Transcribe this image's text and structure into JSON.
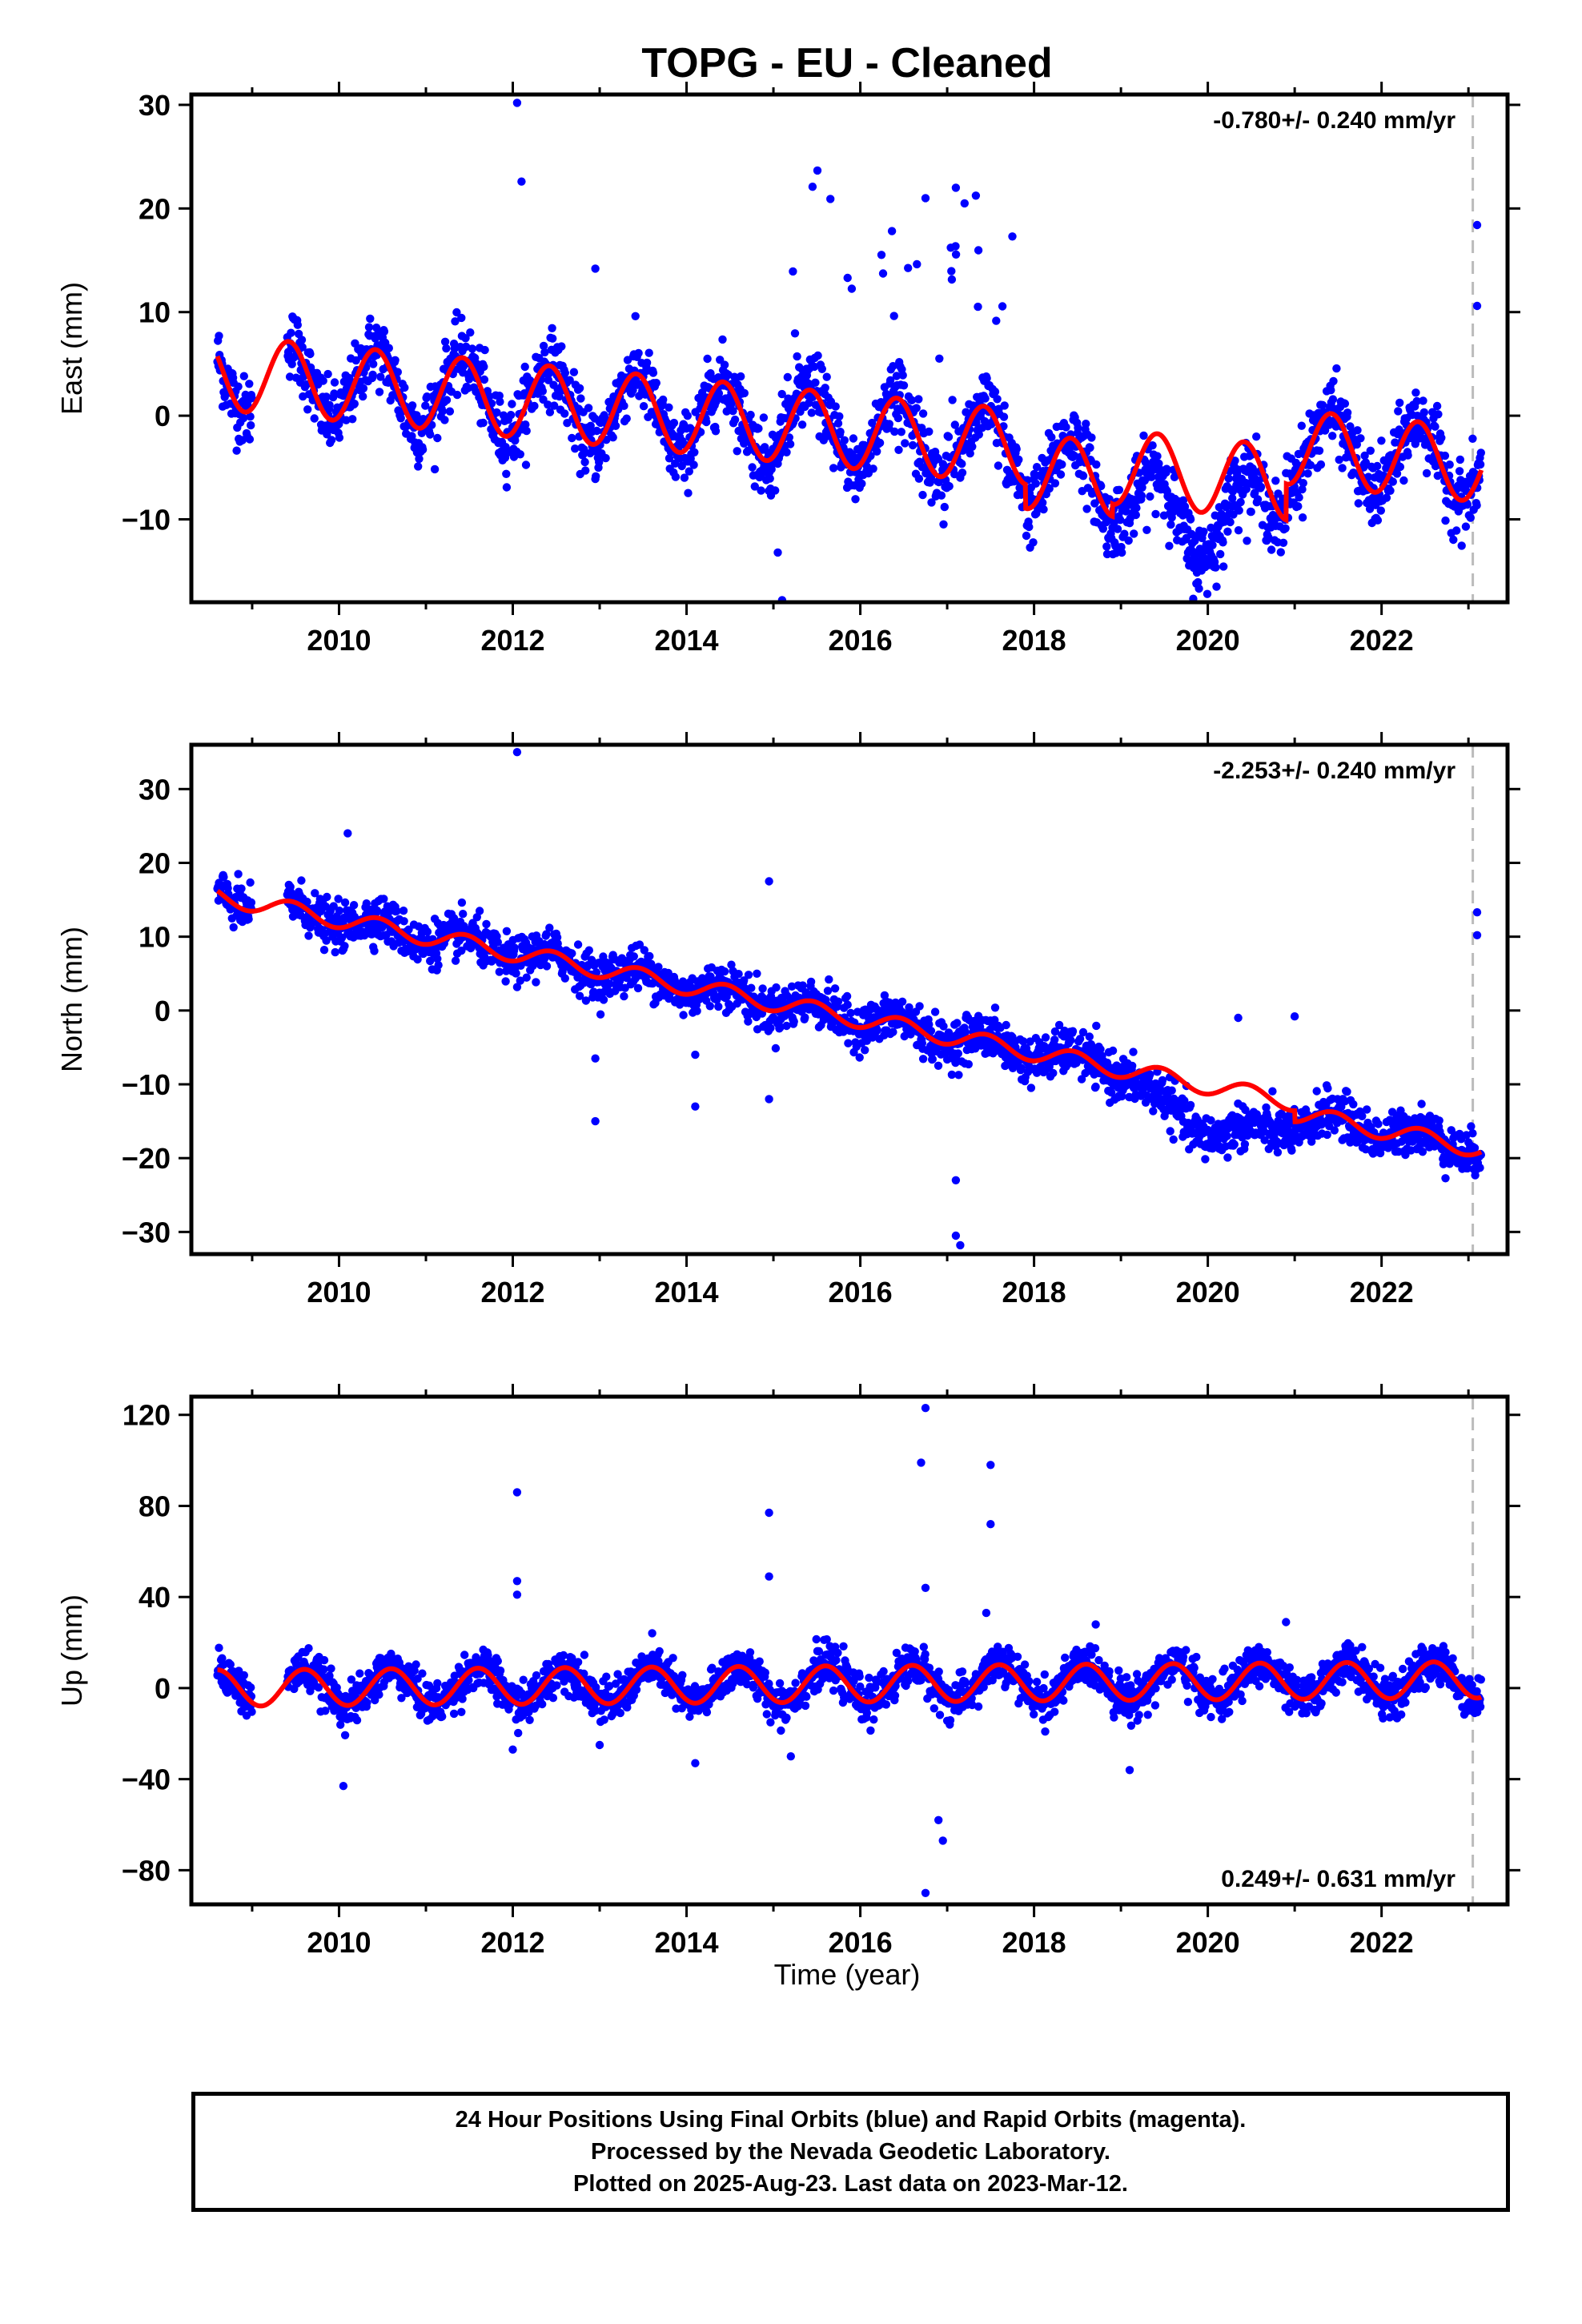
{
  "title": "TOPG  - EU - Cleaned",
  "xlabel": "Time (year)",
  "caption": [
    "24 Hour Positions Using Final Orbits (blue) and Rapid Orbits (magenta).",
    "Processed by the Nevada Geodetic Laboratory.",
    "Plotted on 2025-Aug-23. Last data on 2023-Mar-12."
  ],
  "colors": {
    "data": "#0000ff",
    "model": "#ff0000",
    "marker_line": "#bbbbbb",
    "frame": "#000000"
  },
  "chart_data": [
    {
      "type": "scatter",
      "panel": "east",
      "ylabel": "East (mm)",
      "rate_text": "-0.780+/- 0.240 mm/yr",
      "rate_position": "top-right",
      "xlim": [
        2008.3,
        2023.45
      ],
      "ylim": [
        -18,
        31
      ],
      "xticks": [
        2010,
        2012,
        2014,
        2016,
        2018,
        2020,
        2022
      ],
      "yticks": [
        -10,
        0,
        10,
        20,
        30
      ],
      "end_marker_year": 2023.05,
      "model": {
        "start": 2008.6,
        "end": 2023.15,
        "rate_mm_per_yr": -0.78,
        "offset_at_2008_6": 4.2,
        "annual_amplitude": 3.6,
        "annual_peak_year_fraction": 0.42,
        "step_changes": [
          [
            2017.9,
            -2.3
          ],
          [
            2018.9,
            1.2
          ],
          [
            2020.9,
            3.5
          ]
        ]
      },
      "outliers": [
        [
          2012.05,
          30.2
        ],
        [
          2012.1,
          22.6
        ],
        [
          2012.95,
          14.2
        ],
        [
          2015.05,
          -13.2
        ],
        [
          2015.1,
          -17.8
        ],
        [
          2015.45,
          22.1
        ],
        [
          2016.75,
          21.0
        ],
        [
          2017.1,
          22.0
        ],
        [
          2017.2,
          20.5
        ],
        [
          2017.75,
          17.3
        ],
        [
          2023.1,
          18.4
        ],
        [
          2023.1,
          10.6
        ],
        [
          2020.1,
          -16.5
        ]
      ],
      "series": [
        {
          "name": "Final Orbits",
          "color": "#0000ff"
        }
      ]
    },
    {
      "type": "scatter",
      "panel": "north",
      "ylabel": "North (mm)",
      "rate_text": "-2.253+/- 0.240 mm/yr",
      "rate_position": "top-right",
      "xlim": [
        2008.3,
        2023.45
      ],
      "ylim": [
        -33,
        36
      ],
      "xticks": [
        2010,
        2012,
        2014,
        2016,
        2018,
        2020,
        2022
      ],
      "yticks": [
        -30,
        -20,
        -10,
        0,
        10,
        20,
        30
      ],
      "end_marker_year": 2023.05,
      "model": {
        "start": 2008.6,
        "end": 2023.15,
        "rate_mm_per_yr": -2.253,
        "offset_at_2008_6": 15.5,
        "annual_amplitude": 1.2,
        "annual_peak_year_fraction": 0.45,
        "step_changes": [
          [
            2021.0,
            -1.5
          ]
        ]
      },
      "outliers": [
        [
          2012.05,
          35.0
        ],
        [
          2010.1,
          24.0
        ],
        [
          2012.95,
          -6.5
        ],
        [
          2012.95,
          -15.0
        ],
        [
          2014.1,
          -13.0
        ],
        [
          2014.1,
          -6.0
        ],
        [
          2014.95,
          17.5
        ],
        [
          2014.95,
          -12.0
        ],
        [
          2017.1,
          -30.5
        ],
        [
          2017.1,
          -23.0
        ],
        [
          2017.15,
          -31.8
        ],
        [
          2020.35,
          -1.0
        ],
        [
          2021.0,
          -0.8
        ],
        [
          2023.1,
          13.3
        ],
        [
          2023.1,
          10.2
        ]
      ],
      "series": [
        {
          "name": "Final Orbits",
          "color": "#0000ff"
        }
      ]
    },
    {
      "type": "scatter",
      "panel": "up",
      "ylabel": "Up (mm)",
      "rate_text": "0.249+/- 0.631 mm/yr",
      "rate_position": "bottom-right",
      "xlim": [
        2008.3,
        2023.45
      ],
      "ylim": [
        -95,
        128
      ],
      "xticks": [
        2010,
        2012,
        2014,
        2016,
        2018,
        2020,
        2022
      ],
      "yticks": [
        -80,
        -40,
        0,
        40,
        80,
        120
      ],
      "end_marker_year": 2023.05,
      "model": {
        "start": 2008.6,
        "end": 2023.15,
        "rate_mm_per_yr": 0.249,
        "offset_at_2008_6": 0.0,
        "annual_amplitude": 8.0,
        "annual_peak_year_fraction": 0.6,
        "step_changes": []
      },
      "outliers": [
        [
          2012.05,
          86.0
        ],
        [
          2012.05,
          47.0
        ],
        [
          2012.05,
          41.0
        ],
        [
          2014.95,
          77.0
        ],
        [
          2014.95,
          49.0
        ],
        [
          2016.75,
          123.0
        ],
        [
          2016.7,
          99.0
        ],
        [
          2016.75,
          44.0
        ],
        [
          2017.5,
          98.0
        ],
        [
          2017.5,
          72.0
        ],
        [
          2017.45,
          33.0
        ],
        [
          2016.75,
          -90.0
        ],
        [
          2016.95,
          -67.0
        ],
        [
          2016.9,
          -58.0
        ],
        [
          2010.05,
          -43.0
        ],
        [
          2014.1,
          -33.0
        ],
        [
          2019.1,
          -36.0
        ],
        [
          2012.0,
          -27.0
        ],
        [
          2013.0,
          -25.0
        ],
        [
          2015.2,
          -30.0
        ],
        [
          2020.9,
          29.0
        ]
      ],
      "series": [
        {
          "name": "Final Orbits",
          "color": "#0000ff"
        }
      ]
    }
  ]
}
